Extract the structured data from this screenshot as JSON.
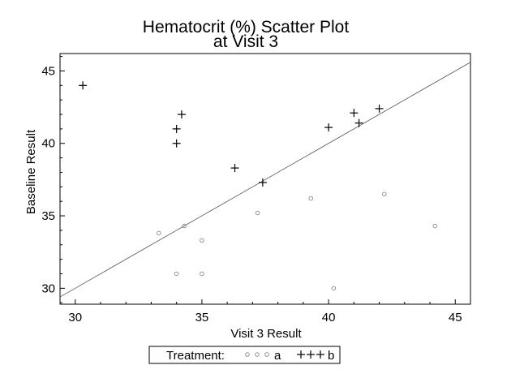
{
  "chart_data": {
    "type": "scatter",
    "title": "Hematocrit (%) Scatter Plot",
    "subtitle": "at Visit 3",
    "xlabel": "Visit 3 Result",
    "ylabel": "Baseline Result",
    "xlim": [
      29.4,
      45.6
    ],
    "ylim": [
      28.9,
      46.2
    ],
    "x_ticks": [
      30,
      35,
      40,
      45
    ],
    "y_ticks": [
      30,
      35,
      40,
      45
    ],
    "x_tick_labels": [
      "30",
      "35",
      "40",
      "45"
    ],
    "y_tick_labels": [
      "30",
      "35",
      "40",
      "45"
    ],
    "reference_line": {
      "type": "identity",
      "from": [
        29.4,
        29.4
      ],
      "to": [
        45.6,
        45.6
      ]
    },
    "grid": false,
    "legend": {
      "title": "Treatment:",
      "placement": "bottom",
      "entries": [
        {
          "label": "a",
          "marker": "circle"
        },
        {
          "label": "b",
          "marker": "plus"
        }
      ]
    },
    "series": [
      {
        "name": "a",
        "marker": "circle",
        "color": "#888888",
        "points": [
          [
            33.3,
            33.8
          ],
          [
            34.3,
            34.3
          ],
          [
            35.0,
            33.3
          ],
          [
            34.0,
            31.0
          ],
          [
            35.0,
            31.0
          ],
          [
            37.2,
            35.2
          ],
          [
            39.3,
            36.2
          ],
          [
            40.2,
            30.0
          ],
          [
            42.2,
            36.5
          ],
          [
            44.2,
            34.3
          ]
        ]
      },
      {
        "name": "b",
        "marker": "plus",
        "color": "#000000",
        "points": [
          [
            30.3,
            44.0
          ],
          [
            34.2,
            42.0
          ],
          [
            34.0,
            41.0
          ],
          [
            34.0,
            40.0
          ],
          [
            36.3,
            38.3
          ],
          [
            37.4,
            37.3
          ],
          [
            40.0,
            41.1
          ],
          [
            41.0,
            42.1
          ],
          [
            41.2,
            41.4
          ],
          [
            42.0,
            42.4
          ]
        ]
      }
    ]
  }
}
